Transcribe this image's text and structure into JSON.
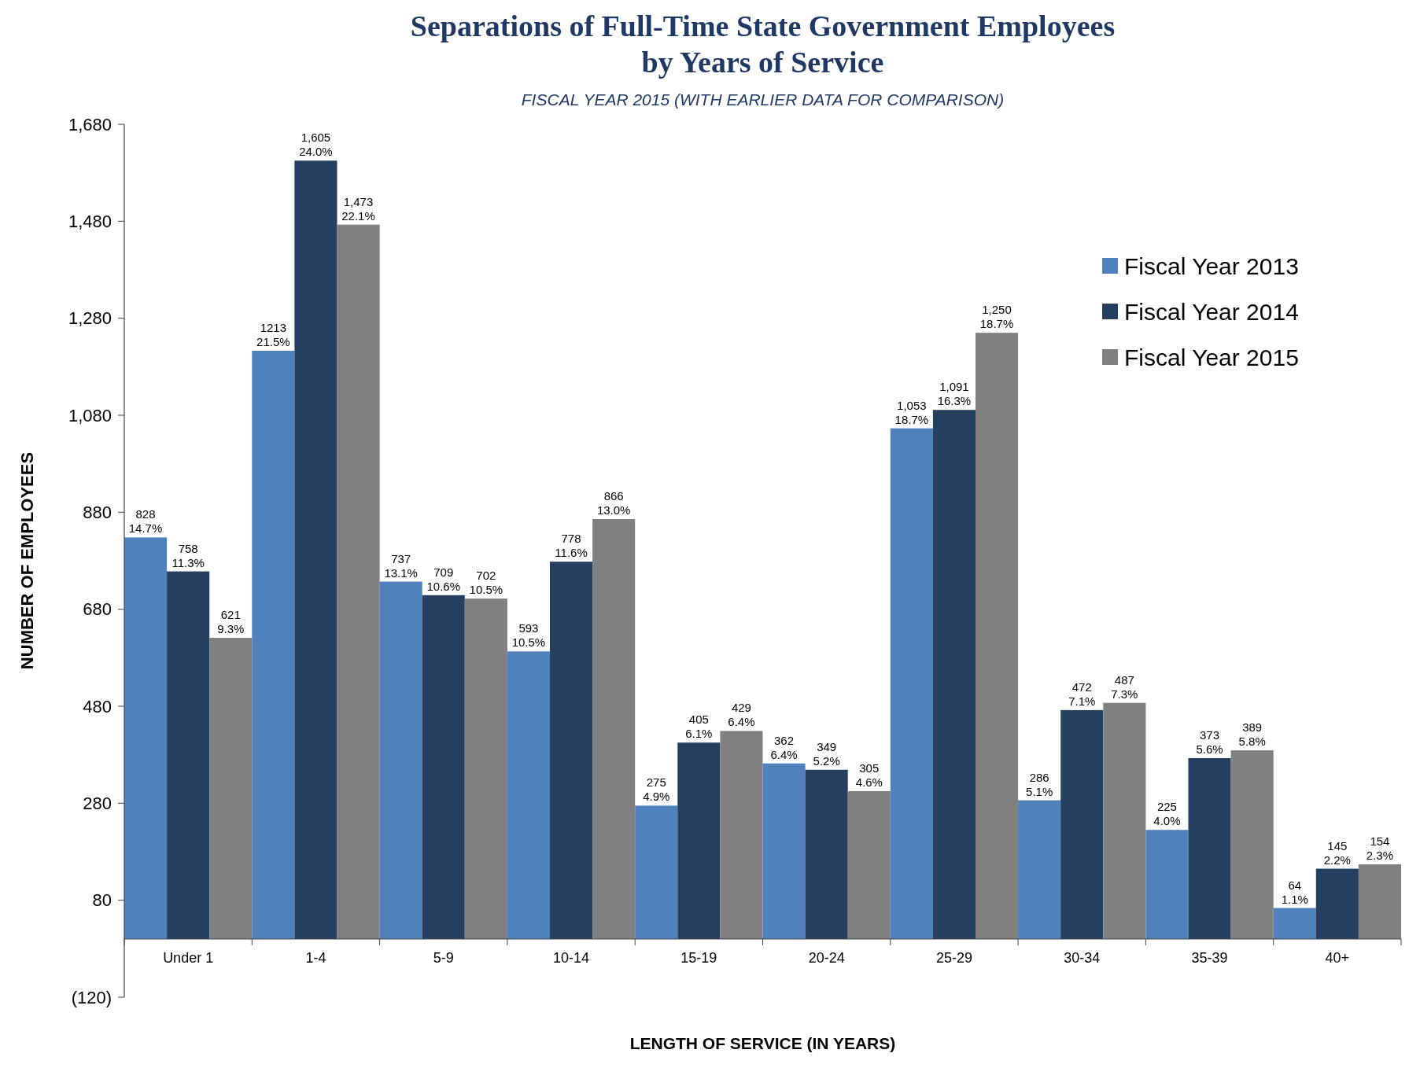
{
  "chart_data": {
    "type": "bar",
    "title": "Separations of Full-Time State Government Employees\nby Years of Service",
    "subtitle": "FISCAL YEAR 2015 (WITH EARLIER DATA FOR COMPARISON)",
    "xlabel": "LENGTH OF SERVICE (IN YEARS)",
    "ylabel": "NUMBER OF EMPLOYEES",
    "categories": [
      "Under 1",
      "1-4",
      "5-9",
      "10-14",
      "15-19",
      "20-24",
      "25-29",
      "30-34",
      "35-39",
      "40+"
    ],
    "series": [
      {
        "name": "Fiscal Year 2013",
        "color": "#4f81bd",
        "values": [
          828,
          1213,
          737,
          593,
          275,
          362,
          1053,
          286,
          225,
          64
        ],
        "value_labels": [
          "828\n14.7%",
          "1213\n21.5%",
          "737\n13.1%",
          "593\n10.5%",
          "275\n4.9%",
          "362\n6.4%",
          "1,053\n18.7%",
          "286\n5.1%",
          "225\n4.0%",
          "64\n1.1%"
        ]
      },
      {
        "name": "Fiscal Year 2014",
        "color": "#243f60",
        "values": [
          758,
          1605,
          709,
          778,
          405,
          349,
          1091,
          472,
          373,
          145
        ],
        "value_labels": [
          "758\n11.3%",
          "1,605\n24.0%",
          "709\n10.6%",
          "778\n11.6%",
          "405\n6.1%",
          "349\n5.2%",
          "1,091\n16.3%",
          "472\n7.1%",
          "373\n5.6%",
          "145\n2.2%"
        ]
      },
      {
        "name": "Fiscal Year 2015",
        "color": "#808080",
        "values": [
          621,
          1473,
          702,
          866,
          429,
          305,
          1250,
          487,
          389,
          154
        ],
        "value_labels": [
          "621\n9.3%",
          "1,473\n22.1%",
          "702\n10.5%",
          "866\n13.0%",
          "429\n6.4%",
          "305\n4.6%",
          "1,250\n18.7%",
          "487\n7.3%",
          "389\n5.8%",
          "154\n2.3%"
        ]
      }
    ],
    "ylim": [
      -120,
      1680
    ],
    "yticks": [
      {
        "value": -120,
        "label": "(120)"
      },
      80,
      280,
      480,
      680,
      880,
      {
        "value": 1080,
        "label": "1,080"
      },
      {
        "value": 1280,
        "label": "1,280"
      },
      {
        "value": 1480,
        "label": "1,480"
      },
      {
        "value": 1680,
        "label": "1,680"
      }
    ],
    "grid": false,
    "legend": "top right"
  }
}
